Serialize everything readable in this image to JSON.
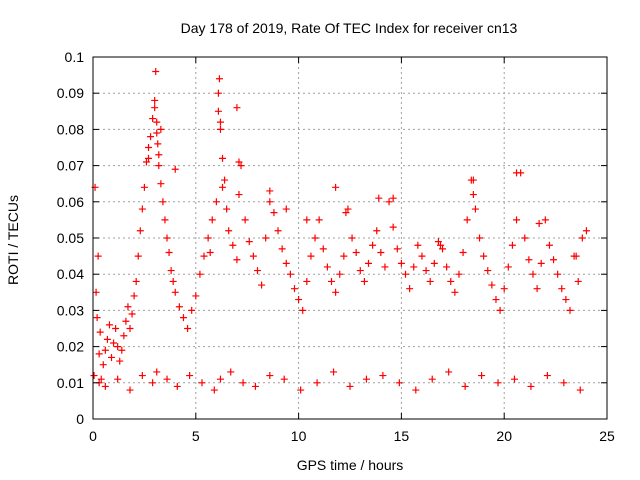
{
  "chart_data": {
    "type": "scatter",
    "title": "Day 178 of 2019, Rate Of TEC Index for receiver cn13",
    "xlabel": "GPS time / hours",
    "ylabel": "ROTI / TECUs",
    "xlim": [
      0,
      25
    ],
    "ylim": [
      0,
      0.1
    ],
    "x_ticks": [
      0,
      5,
      10,
      15,
      20,
      25
    ],
    "y_ticks": [
      0,
      0.01,
      0.02,
      0.03,
      0.04,
      0.05,
      0.06,
      0.07,
      0.08,
      0.09,
      0.1
    ],
    "x_tick_labels": [
      "0",
      "5",
      "10",
      "15",
      "20",
      "25"
    ],
    "y_tick_labels": [
      "0",
      "0.01",
      "0.02",
      "0.03",
      "0.04",
      "0.05",
      "0.06",
      "0.07",
      "0.08",
      "0.09",
      "0.1"
    ],
    "grid": true,
    "legend": "none",
    "marker": "+",
    "color": "#ff0000",
    "series": [
      {
        "x": [
          0.05,
          0.1,
          0.15,
          0.2,
          0.25,
          0.3,
          0.35,
          0.4,
          0.5,
          0.6,
          0.7,
          0.8,
          0.9,
          1.0,
          1.1,
          1.2,
          1.3,
          1.4,
          1.5,
          1.6,
          1.7,
          1.8,
          1.9,
          2.0,
          2.1,
          2.2,
          2.3,
          2.4,
          2.5,
          2.6,
          2.7,
          2.8,
          2.9,
          3.0,
          3.05,
          3.1,
          3.15,
          3.2,
          3.3,
          3.4,
          3.5,
          3.6,
          3.7,
          3.8,
          3.9,
          4.0,
          4.2,
          4.4,
          4.6,
          4.8,
          5.0,
          5.2,
          5.4,
          5.6,
          5.8,
          6.0,
          6.1,
          6.15,
          6.2,
          6.3,
          6.4,
          6.5,
          6.6,
          6.8,
          7.0,
          7.1,
          7.2,
          7.4,
          7.6,
          7.8,
          8.0,
          8.2,
          8.4,
          8.6,
          8.8,
          9.0,
          9.2,
          9.4,
          9.6,
          9.8,
          10.0,
          10.2,
          10.4,
          10.6,
          10.8,
          11.0,
          11.2,
          11.4,
          11.6,
          11.8,
          12.0,
          12.2,
          12.4,
          12.6,
          12.8,
          13.0,
          13.2,
          13.4,
          13.6,
          13.8,
          14.0,
          14.2,
          14.4,
          14.6,
          14.8,
          15.0,
          15.2,
          15.4,
          15.6,
          15.8,
          16.0,
          16.2,
          16.4,
          16.6,
          16.8,
          17.0,
          17.2,
          17.4,
          17.6,
          17.8,
          18.0,
          18.2,
          18.4,
          18.5,
          18.6,
          18.8,
          19.0,
          19.2,
          19.4,
          19.6,
          19.8,
          20.0,
          20.2,
          20.4,
          20.6,
          20.8,
          21.0,
          21.2,
          21.4,
          21.6,
          21.8,
          22.0,
          22.2,
          22.4,
          22.6,
          22.8,
          23.0,
          23.2,
          23.4,
          23.6,
          23.8,
          24.0,
          0.3,
          0.6,
          1.2,
          1.8,
          2.4,
          2.9,
          3.1,
          3.6,
          4.1,
          4.7,
          5.3,
          5.9,
          6.2,
          6.7,
          7.3,
          7.9,
          8.6,
          9.3,
          10.1,
          10.9,
          11.7,
          12.5,
          13.3,
          14.1,
          14.9,
          15.7,
          16.5,
          17.3,
          18.1,
          18.9,
          19.7,
          20.5,
          21.3,
          22.1,
          22.9,
          23.7,
          3.0,
          3.1,
          3.2,
          6.1,
          6.2,
          6.3,
          7.0,
          7.1,
          18.5,
          20.6,
          12.3,
          13.9,
          8.6,
          9.4,
          2.7,
          3.3,
          4.0,
          5.7,
          10.4,
          11.8,
          14.6,
          16.9,
          21.7,
          23.5
        ],
        "values": [
          0.012,
          0.064,
          0.035,
          0.028,
          0.045,
          0.018,
          0.024,
          0.011,
          0.015,
          0.019,
          0.022,
          0.026,
          0.017,
          0.021,
          0.025,
          0.02,
          0.016,
          0.019,
          0.023,
          0.027,
          0.031,
          0.025,
          0.029,
          0.034,
          0.038,
          0.045,
          0.052,
          0.058,
          0.064,
          0.071,
          0.075,
          0.078,
          0.083,
          0.088,
          0.096,
          0.082,
          0.076,
          0.07,
          0.065,
          0.06,
          0.055,
          0.05,
          0.046,
          0.041,
          0.038,
          0.035,
          0.031,
          0.028,
          0.025,
          0.03,
          0.034,
          0.04,
          0.045,
          0.05,
          0.055,
          0.06,
          0.09,
          0.094,
          0.082,
          0.072,
          0.066,
          0.058,
          0.052,
          0.048,
          0.044,
          0.062,
          0.07,
          0.055,
          0.049,
          0.045,
          0.041,
          0.037,
          0.05,
          0.06,
          0.057,
          0.052,
          0.047,
          0.043,
          0.04,
          0.036,
          0.033,
          0.03,
          0.038,
          0.045,
          0.05,
          0.055,
          0.047,
          0.042,
          0.038,
          0.035,
          0.04,
          0.045,
          0.058,
          0.05,
          0.046,
          0.041,
          0.038,
          0.043,
          0.048,
          0.052,
          0.046,
          0.042,
          0.06,
          0.053,
          0.047,
          0.043,
          0.04,
          0.036,
          0.042,
          0.048,
          0.045,
          0.041,
          0.038,
          0.043,
          0.049,
          0.047,
          0.042,
          0.038,
          0.035,
          0.04,
          0.046,
          0.055,
          0.066,
          0.062,
          0.058,
          0.05,
          0.045,
          0.041,
          0.037,
          0.033,
          0.03,
          0.036,
          0.042,
          0.048,
          0.055,
          0.068,
          0.05,
          0.044,
          0.04,
          0.036,
          0.043,
          0.055,
          0.048,
          0.044,
          0.04,
          0.036,
          0.033,
          0.03,
          0.045,
          0.038,
          0.05,
          0.052,
          0.01,
          0.009,
          0.011,
          0.008,
          0.012,
          0.01,
          0.013,
          0.011,
          0.009,
          0.012,
          0.01,
          0.008,
          0.011,
          0.013,
          0.01,
          0.009,
          0.012,
          0.011,
          0.008,
          0.01,
          0.013,
          0.009,
          0.011,
          0.012,
          0.01,
          0.008,
          0.011,
          0.013,
          0.009,
          0.012,
          0.01,
          0.011,
          0.009,
          0.012,
          0.01,
          0.008,
          0.086,
          0.079,
          0.073,
          0.085,
          0.08,
          0.064,
          0.086,
          0.071,
          0.066,
          0.068,
          0.057,
          0.061,
          0.063,
          0.058,
          0.072,
          0.08,
          0.069,
          0.046,
          0.055,
          0.064,
          0.061,
          0.048,
          0.054,
          0.045
        ]
      }
    ]
  }
}
